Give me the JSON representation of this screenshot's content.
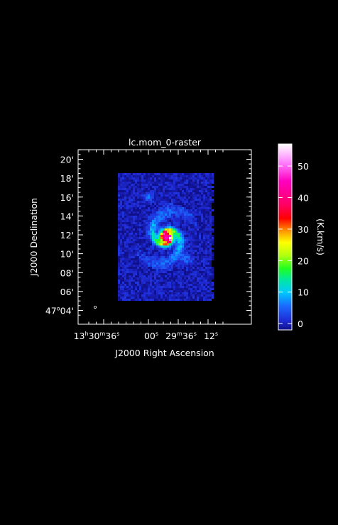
{
  "chart_data": {
    "type": "heatmap",
    "title": "lc.mom_0-raster",
    "xlabel": "J2000 Right Ascension",
    "ylabel": "J2000 Declination",
    "x_ticks": [
      {
        "label_parts": [
          {
            "t": "13"
          },
          {
            "t": "h",
            "sup": true
          },
          {
            "t": "30"
          },
          {
            "t": "m",
            "sup": true
          },
          {
            "t": "36"
          },
          {
            "t": "s",
            "sup": true
          }
        ],
        "ra_seconds": 48636
      },
      {
        "label_parts": [
          {
            "t": "00"
          },
          {
            "t": "s",
            "sup": true
          }
        ],
        "ra_seconds": 48600
      },
      {
        "label_parts": [
          {
            "t": "29"
          },
          {
            "t": "m",
            "sup": true
          },
          {
            "t": "36"
          },
          {
            "t": "s",
            "sup": true
          }
        ],
        "ra_seconds": 48576
      },
      {
        "label_parts": [
          {
            "t": "12"
          },
          {
            "t": "s",
            "sup": true
          }
        ],
        "ra_seconds": 48552
      }
    ],
    "y_ticks": [
      {
        "label_parts": [
          {
            "t": "20'"
          }
        ],
        "dec_arcmin": 20
      },
      {
        "label_parts": [
          {
            "t": "18'"
          }
        ],
        "dec_arcmin": 18
      },
      {
        "label_parts": [
          {
            "t": "16'"
          }
        ],
        "dec_arcmin": 16
      },
      {
        "label_parts": [
          {
            "t": "14'"
          }
        ],
        "dec_arcmin": 14
      },
      {
        "label_parts": [
          {
            "t": "12'"
          }
        ],
        "dec_arcmin": 12
      },
      {
        "label_parts": [
          {
            "t": "10'"
          }
        ],
        "dec_arcmin": 10
      },
      {
        "label_parts": [
          {
            "t": "08'"
          }
        ],
        "dec_arcmin": 8
      },
      {
        "label_parts": [
          {
            "t": "06'"
          }
        ],
        "dec_arcmin": 6
      },
      {
        "label_parts": [
          {
            "t": "47"
          },
          {
            "t": "o",
            "sup": true
          },
          {
            "t": "04'"
          }
        ],
        "dec_arcmin": 4
      }
    ],
    "colorbar": {
      "label": "(K.km/s)",
      "ticks": [
        0,
        10,
        20,
        30,
        40,
        50
      ],
      "range": [
        -2,
        57
      ],
      "colormap": "rainbow"
    },
    "grid": false,
    "colors": {
      "background": "#000000",
      "axes": "#ffffff",
      "noise_blue": "#1030e0",
      "peak": "#ff0000"
    }
  }
}
